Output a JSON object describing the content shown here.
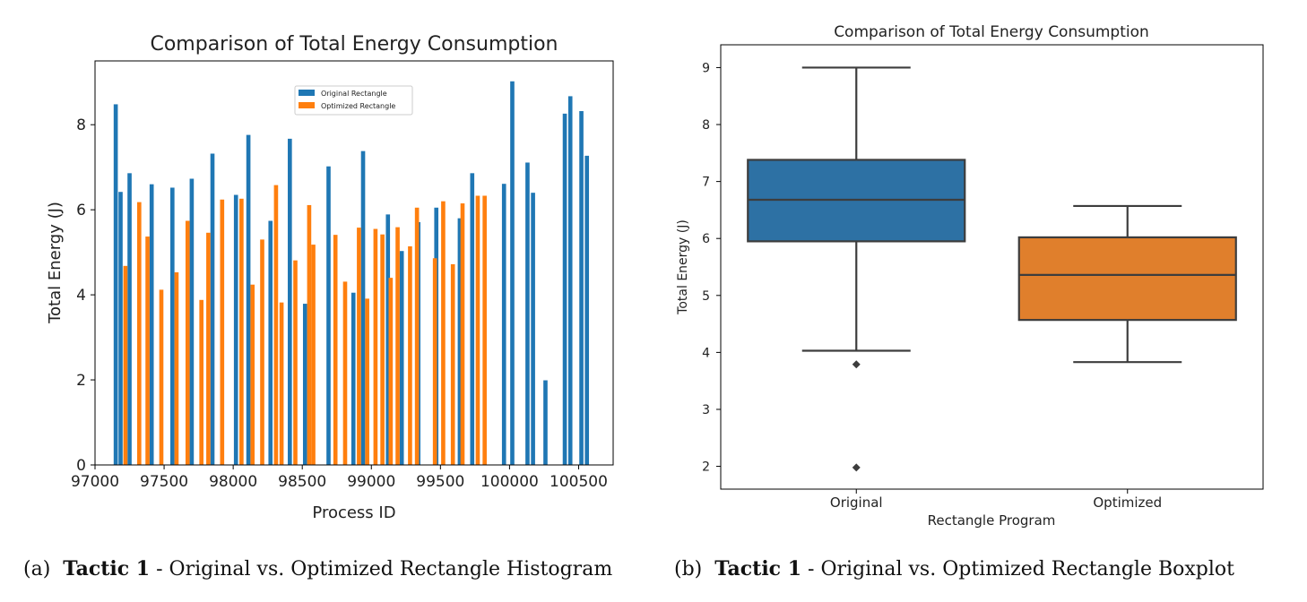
{
  "captions": {
    "a": {
      "prefix": "(a)",
      "bold": "Tactic 1",
      "rest": " - Original vs. Optimized Rectangle Histogram"
    },
    "b": {
      "prefix": "(b)",
      "bold": "Tactic 1",
      "rest": " - Original vs. Optimized Rectangle Boxplot"
    }
  },
  "chart_data": [
    {
      "type": "bar",
      "title": "Comparison of Total Energy Consumption",
      "xlabel": "Process ID",
      "ylabel": "Total Energy (J)",
      "xlim": [
        97000,
        100750
      ],
      "ylim": [
        0,
        9.5
      ],
      "xticks": [
        97000,
        97500,
        98000,
        98500,
        99000,
        99500,
        100000,
        100500
      ],
      "yticks": [
        0,
        2,
        4,
        6,
        8
      ],
      "bar_width": 30,
      "grid": false,
      "legend_position": "upper-center",
      "colors": {
        "Original Rectangle": "#1f77b4",
        "Optimized Rectangle": "#ff7f0e"
      },
      "series": [
        {
          "name": "Original Rectangle",
          "x": [
            97150,
            97185,
            97250,
            97410,
            97560,
            97700,
            97850,
            98020,
            98110,
            98270,
            98410,
            98520,
            98690,
            98870,
            98940,
            99120,
            99220,
            99340,
            99470,
            99640,
            99730,
            99960,
            100020,
            100130,
            100170,
            100260,
            100400,
            100440,
            100520,
            100560
          ],
          "values": [
            8.48,
            6.42,
            6.86,
            6.6,
            6.52,
            6.73,
            7.32,
            6.35,
            7.76,
            5.74,
            7.67,
            3.79,
            7.02,
            4.05,
            7.38,
            5.89,
            5.03,
            5.71,
            6.05,
            5.8,
            6.86,
            6.61,
            9.02,
            7.11,
            6.4,
            1.99,
            8.26,
            8.67,
            8.32,
            7.27
          ]
        },
        {
          "name": "Optimized Rectangle",
          "x": [
            97220,
            97320,
            97380,
            97480,
            97590,
            97670,
            97770,
            97820,
            97920,
            98060,
            98140,
            98210,
            98310,
            98350,
            98450,
            98550,
            98580,
            98740,
            98810,
            98910,
            98970,
            99030,
            99080,
            99140,
            99190,
            99280,
            99330,
            99460,
            99520,
            99590,
            99660,
            99770,
            99820
          ],
          "values": [
            4.68,
            6.18,
            5.37,
            4.12,
            4.53,
            5.74,
            3.88,
            5.46,
            6.24,
            6.26,
            4.24,
            5.3,
            6.58,
            3.82,
            4.81,
            6.11,
            5.18,
            5.41,
            4.31,
            5.58,
            3.91,
            5.55,
            5.42,
            4.4,
            5.59,
            5.14,
            6.05,
            4.86,
            6.2,
            4.72,
            6.15,
            6.33,
            6.33
          ]
        }
      ]
    },
    {
      "type": "box",
      "title": "Comparison of Total Energy Consumption",
      "xlabel": "Rectangle Program",
      "ylabel": "Total Energy (J)",
      "ylim": [
        1.6,
        9.4
      ],
      "yticks": [
        2,
        3,
        4,
        5,
        6,
        7,
        8,
        9
      ],
      "grid": false,
      "categories": [
        "Original",
        "Optimized"
      ],
      "boxes": [
        {
          "name": "Original",
          "color": "#2d71a4",
          "whisker_low": 4.03,
          "q1": 5.95,
          "median": 6.68,
          "q3": 7.38,
          "whisker_high": 9.0,
          "outliers": [
            3.79,
            1.98
          ]
        },
        {
          "name": "Optimized",
          "color": "#e07f2c",
          "whisker_low": 3.83,
          "q1": 4.57,
          "median": 5.36,
          "q3": 6.02,
          "whisker_high": 6.57,
          "outliers": []
        }
      ]
    }
  ]
}
